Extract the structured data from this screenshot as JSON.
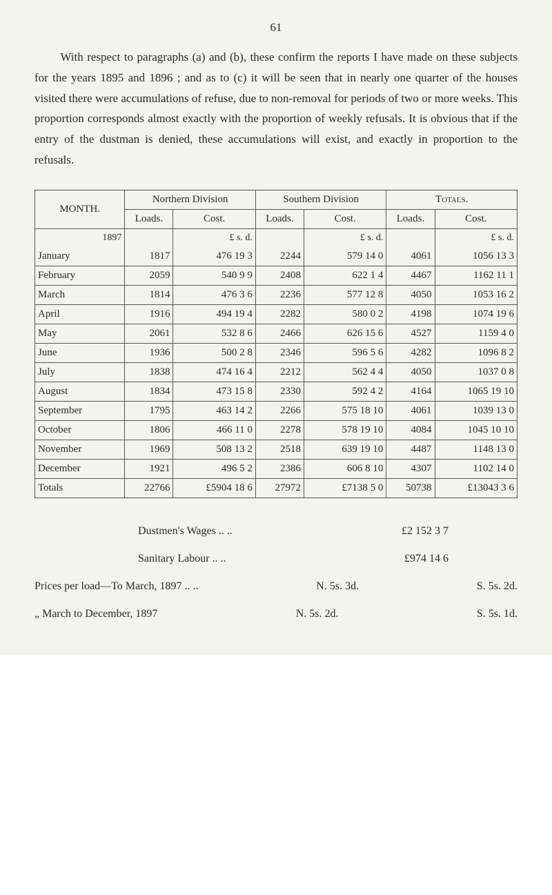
{
  "page_number": "61",
  "paragraph": "With respect to paragraphs (a) and (b), these confirm the reports I have made on these subjects for the years 1895 and 1896 ; and as to (c) it will be seen that in nearly one quarter of the houses visited there were accumulations of refuse, due to non-removal for periods of two or more weeks. This proportion corresponds almost exactly with the proportion of weekly refusals. It is obvious that if the entry of the dustman is denied, these accumulations will exist, and exactly in proportion to the refusals.",
  "table": {
    "headers": {
      "month": "MONTH.",
      "northern": "Northern Division",
      "southern": "Southern Division",
      "totals": "Totals.",
      "loads": "Loads.",
      "cost": "Cost."
    },
    "lsd_header": "£  s.  d.",
    "year": "1897",
    "rows": [
      {
        "month": "January",
        "n_loads": "1817",
        "n_cost": "476 19 3",
        "s_loads": "2244",
        "s_cost": "579 14 0",
        "t_loads": "4061",
        "t_cost": "1056 13 3"
      },
      {
        "month": "February",
        "n_loads": "2059",
        "n_cost": "540 9 9",
        "s_loads": "2408",
        "s_cost": "622 1 4",
        "t_loads": "4467",
        "t_cost": "1162 11 1"
      },
      {
        "month": "March",
        "n_loads": "1814",
        "n_cost": "476 3 6",
        "s_loads": "2236",
        "s_cost": "577 12 8",
        "t_loads": "4050",
        "t_cost": "1053 16 2"
      },
      {
        "month": "April",
        "n_loads": "1916",
        "n_cost": "494 19 4",
        "s_loads": "2282",
        "s_cost": "580 0 2",
        "t_loads": "4198",
        "t_cost": "1074 19 6"
      },
      {
        "month": "May",
        "n_loads": "2061",
        "n_cost": "532 8 6",
        "s_loads": "2466",
        "s_cost": "626 15 6",
        "t_loads": "4527",
        "t_cost": "1159 4 0"
      },
      {
        "month": "June",
        "n_loads": "1936",
        "n_cost": "500 2 8",
        "s_loads": "2346",
        "s_cost": "596 5 6",
        "t_loads": "4282",
        "t_cost": "1096 8 2"
      },
      {
        "month": "July",
        "n_loads": "1838",
        "n_cost": "474 16 4",
        "s_loads": "2212",
        "s_cost": "562 4 4",
        "t_loads": "4050",
        "t_cost": "1037 0 8"
      },
      {
        "month": "August",
        "n_loads": "1834",
        "n_cost": "473 15 8",
        "s_loads": "2330",
        "s_cost": "592 4 2",
        "t_loads": "4164",
        "t_cost": "1065 19 10"
      },
      {
        "month": "September",
        "n_loads": "1795",
        "n_cost": "463 14 2",
        "s_loads": "2266",
        "s_cost": "575 18 10",
        "t_loads": "4061",
        "t_cost": "1039 13 0"
      },
      {
        "month": "October",
        "n_loads": "1806",
        "n_cost": "466 11 0",
        "s_loads": "2278",
        "s_cost": "578 19 10",
        "t_loads": "4084",
        "t_cost": "1045 10 10"
      },
      {
        "month": "November",
        "n_loads": "1969",
        "n_cost": "508 13 2",
        "s_loads": "2518",
        "s_cost": "639 19 10",
        "t_loads": "4487",
        "t_cost": "1148 13 0"
      },
      {
        "month": "December",
        "n_loads": "1921",
        "n_cost": "496 5 2",
        "s_loads": "2386",
        "s_cost": "606 8 10",
        "t_loads": "4307",
        "t_cost": "1102 14 0"
      }
    ],
    "totals": {
      "label": "Totals",
      "n_loads": "22766",
      "n_cost": "£5904 18 6",
      "s_loads": "27972",
      "s_cost": "£7138 5 0",
      "t_loads": "50738",
      "t_cost": "£13043 3 6"
    }
  },
  "bottom_lines": {
    "dustmen": {
      "label": "Dustmen's Wages   ..    ..",
      "value": "£2 152  3  7"
    },
    "sanitary": {
      "label": "Sanitary Labour    ..    ..",
      "value": "£974 14  6"
    },
    "prices1": {
      "label": "Prices per load—To March, 1897   ..    ..",
      "n": "N. 5s. 3d.",
      "s": "S. 5s. 2d."
    },
    "prices2": {
      "label": "„            March to December, 1897",
      "n": "N. 5s. 2d.",
      "s": "S. 5s. 1d."
    }
  }
}
